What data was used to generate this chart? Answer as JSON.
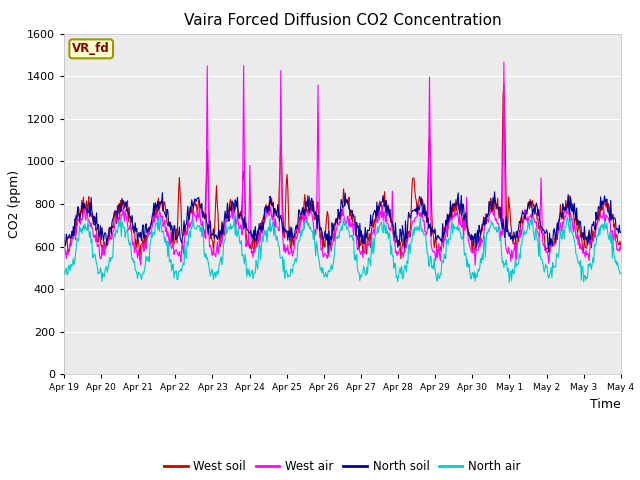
{
  "title": "Vaira Forced Diffusion CO2 Concentration",
  "xlabel": "Time",
  "ylabel": "CO2 (ppm)",
  "ylim": [
    0,
    1600
  ],
  "yticks": [
    0,
    200,
    400,
    600,
    800,
    1000,
    1200,
    1400,
    1600
  ],
  "xtick_labels": [
    "Apr 19",
    "Apr 20",
    "Apr 21",
    "Apr 22",
    "Apr 23",
    "Apr 24",
    "Apr 25",
    "Apr 26",
    "Apr 27",
    "Apr 28",
    "Apr 29",
    "Apr 30",
    "May 1",
    "May 2",
    "May 3",
    "May 4"
  ],
  "colors": {
    "west_soil": "#cc0000",
    "west_air": "#ff00ff",
    "north_soil": "#000099",
    "north_air": "#00cccc"
  },
  "legend_labels": [
    "West soil",
    "West air",
    "North soil",
    "North air"
  ],
  "fig_bg": "#ffffff",
  "plot_bg": "#ebebeb",
  "label_box_text": "VR_fd",
  "label_box_bg": "#ffffcc",
  "label_box_border": "#999900"
}
